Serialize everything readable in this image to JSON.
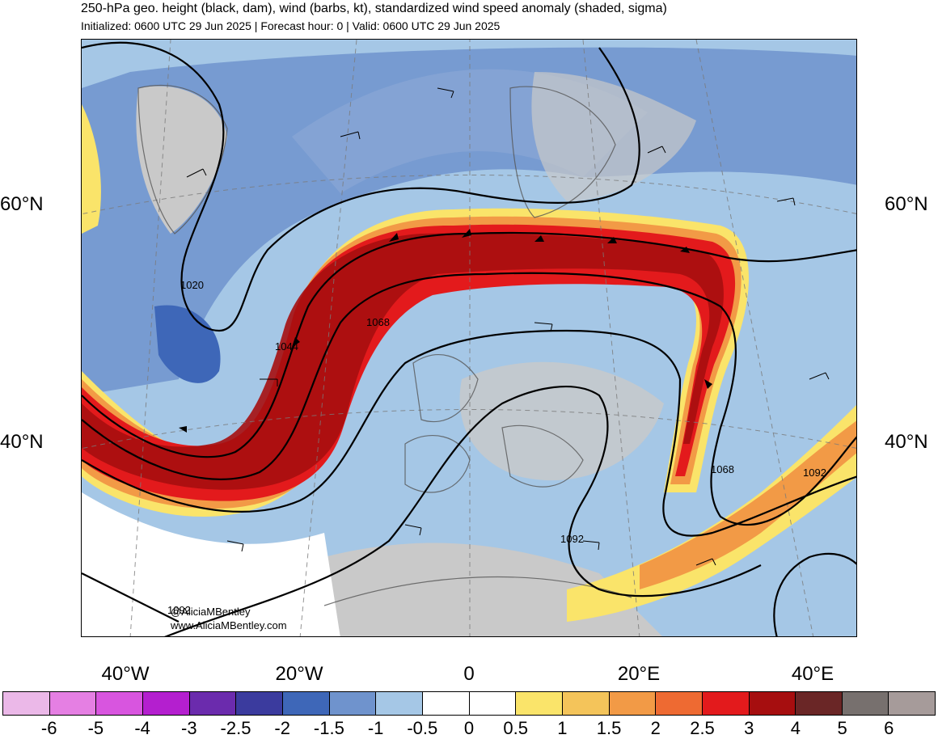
{
  "header": {
    "title": "250-hPa geo. height (black, dam), wind (barbs, kt), standardized wind speed anomaly (shaded, sigma)",
    "subtitle": "Initialized: 0600 UTC 29 Jun 2025 | Forecast hour: 0 | Valid: 0600 UTC 29 Jun 2025"
  },
  "map": {
    "lat_labels": {
      "left_60": "60°N",
      "right_60": "60°N",
      "left_40": "40°N",
      "right_40": "40°N"
    },
    "lon_labels": [
      "40°W",
      "20°W",
      "0",
      "20°E",
      "40°E"
    ],
    "contour_labels": [
      "1020",
      "1044",
      "1068",
      "1068",
      "1092",
      "1092",
      "1092"
    ],
    "credit": {
      "handle": "@AliciaMBentley",
      "site": "www.AliciaMBentley.com"
    }
  },
  "legend": {
    "colors": [
      "#ebb8e8",
      "#e57fe3",
      "#d855df",
      "#b41fcf",
      "#6b2bad",
      "#3b3b9e",
      "#3e67b8",
      "#6f93cd",
      "#a5c7e6",
      "#ffffff",
      "#ffffff",
      "#fae46a",
      "#f4c45a",
      "#f29a46",
      "#ee6a32",
      "#e31a1c",
      "#a60e0f",
      "#6a2626",
      "#77706e",
      "#a69b9a"
    ],
    "labels": [
      "-6",
      "-5",
      "-4",
      "-3",
      "-2.5",
      "-2",
      "-1.5",
      "-1",
      "-0.5",
      "0",
      "0.5",
      "1",
      "1.5",
      "2",
      "2.5",
      "3",
      "4",
      "5",
      "6"
    ]
  }
}
